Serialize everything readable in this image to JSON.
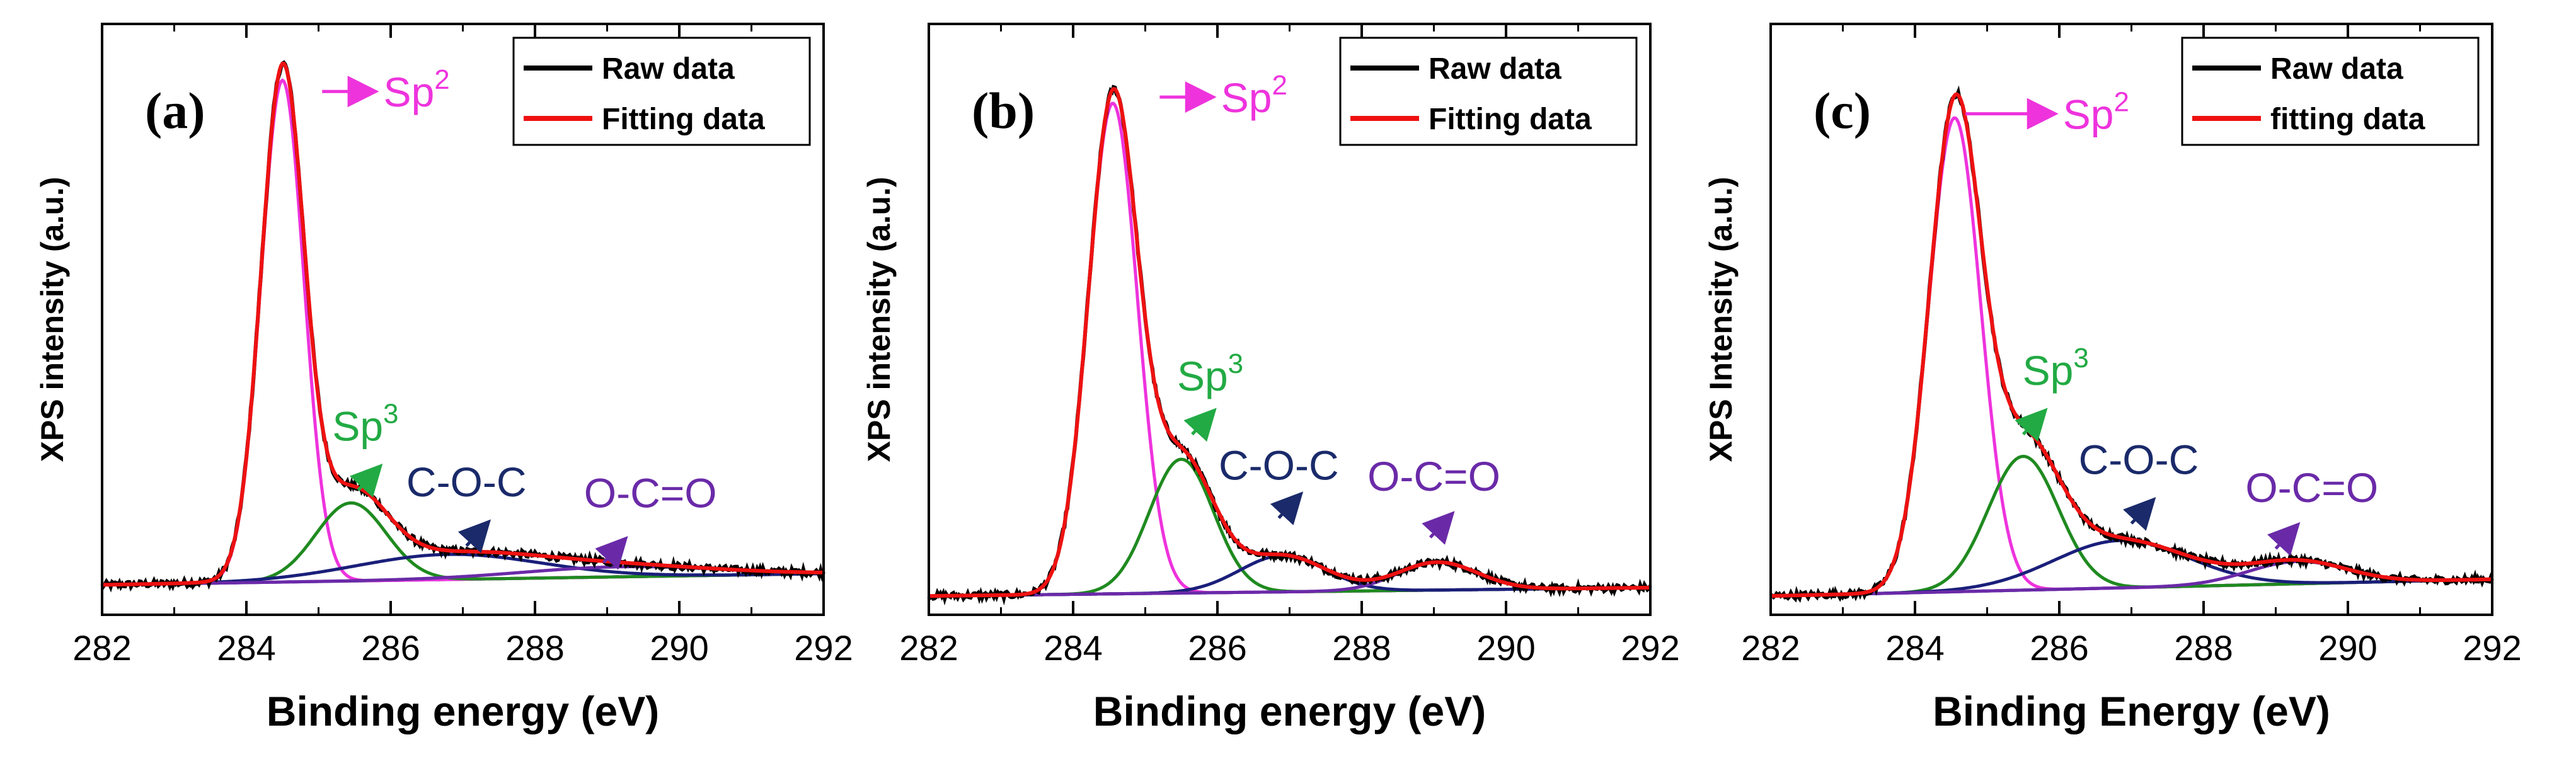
{
  "figure": {
    "colors": {
      "raw": "#000000",
      "fit": "#ee1111",
      "sp2": "#ee33dd",
      "sp3": "#1f8a1f",
      "coc": "#1a1f7a",
      "oco": "#6a2aa8",
      "sp2_label": "#ee33dd",
      "sp3_label": "#22aa44",
      "coc_label": "#1a2a6a",
      "oco_label": "#6a2aa8"
    }
  },
  "chart_data": [
    {
      "type": "line",
      "panel": "(a)",
      "title": "",
      "xlabel": "Binding energy (eV)",
      "ylabel": "XPS intensity (a.u.)",
      "xlim": [
        282,
        292
      ],
      "ylim": [
        0,
        1.0
      ],
      "xticks": [
        "282",
        "284",
        "286",
        "288",
        "290",
        "292"
      ],
      "legend": {
        "position": "top-right",
        "entries": [
          "Raw data",
          "Fitting data"
        ]
      },
      "background": 0.03,
      "background_end": 0.05,
      "components": [
        {
          "name": "Sp2",
          "label": "Sp",
          "sup": "2",
          "center": 284.5,
          "fwhm": 0.7,
          "height": 0.9
        },
        {
          "name": "Sp3",
          "label": "Sp",
          "sup": "3",
          "center": 285.45,
          "fwhm": 1.15,
          "height": 0.14
        },
        {
          "name": "C-O-C",
          "label": "C-O-C",
          "sup": "",
          "center": 286.8,
          "fwhm": 3.0,
          "height": 0.045
        },
        {
          "name": "O-C=O",
          "label": "O-C=O",
          "sup": "",
          "center": 289.2,
          "fwhm": 3.2,
          "height": 0.018
        }
      ],
      "annotations": [
        {
          "text": "Sp",
          "sup": "2",
          "component": "Sp2",
          "x": 285.05,
          "y": 0.915,
          "tx": 285.9,
          "ty": 0.915
        },
        {
          "text": "Sp",
          "sup": "3",
          "component": "Sp3",
          "x": 285.8,
          "y": 0.235,
          "tx": 285.65,
          "ty": 0.3
        },
        {
          "text": "C-O-C",
          "sup": "",
          "component": "C-O-C",
          "x": 287.3,
          "y": 0.135,
          "tx": 287.05,
          "ty": 0.2
        },
        {
          "text": "O-C=O",
          "sup": "",
          "component": "O-C=O",
          "x": 289.2,
          "y": 0.105,
          "tx": 289.6,
          "ty": 0.18
        }
      ]
    },
    {
      "type": "line",
      "panel": "(b)",
      "title": "",
      "xlabel": "Binding energy (eV)",
      "ylabel": "XPS intensity (a.u.)",
      "xlim": [
        282,
        292
      ],
      "ylim": [
        0,
        1.0
      ],
      "xticks": [
        "282",
        "284",
        "286",
        "288",
        "290",
        "292"
      ],
      "legend": {
        "position": "top-right",
        "entries": [
          "Raw data",
          "Fitting data"
        ]
      },
      "background": 0.01,
      "background_end": 0.025,
      "components": [
        {
          "name": "Sp2",
          "label": "Sp",
          "sup": "2",
          "center": 284.55,
          "fwhm": 0.8,
          "height": 0.88
        },
        {
          "name": "Sp3",
          "label": "Sp",
          "sup": "3",
          "center": 285.5,
          "fwhm": 1.05,
          "height": 0.24
        },
        {
          "name": "C-O-C",
          "label": "C-O-C",
          "sup": "",
          "center": 286.9,
          "fwhm": 1.4,
          "height": 0.065
        },
        {
          "name": "O-C=O",
          "label": "O-C=O",
          "sup": "",
          "center": 289.05,
          "fwhm": 1.3,
          "height": 0.05
        }
      ],
      "annotations": [
        {
          "text": "Sp",
          "sup": "2",
          "component": "Sp2",
          "x": 285.2,
          "y": 0.905,
          "tx": 286.05,
          "ty": 0.905
        },
        {
          "text": "Sp",
          "sup": "3",
          "component": "Sp3",
          "x": 285.9,
          "y": 0.335,
          "tx": 285.9,
          "ty": 0.39
        },
        {
          "text": "C-O-C",
          "sup": "",
          "component": "C-O-C",
          "x": 287.1,
          "y": 0.185,
          "tx": 286.85,
          "ty": 0.23
        },
        {
          "text": "O-C=O",
          "sup": "",
          "component": "O-C=O",
          "x": 289.2,
          "y": 0.15,
          "tx": 289.0,
          "ty": 0.21
        }
      ]
    },
    {
      "type": "line",
      "panel": "(c)",
      "title": "",
      "xlabel": "Binding Energy (eV)",
      "ylabel": "XPS Intensity (a.u.)",
      "xlim": [
        282,
        292
      ],
      "ylim": [
        0,
        1.0
      ],
      "xticks": [
        "282",
        "284",
        "286",
        "288",
        "290",
        "292"
      ],
      "legend": {
        "position": "top-right",
        "entries": [
          "Raw data",
          "fitting data"
        ]
      },
      "background": 0.01,
      "background_end": 0.04,
      "components": [
        {
          "name": "Sp2",
          "label": "Sp",
          "sup": "2",
          "center": 284.55,
          "fwhm": 0.85,
          "height": 0.85
        },
        {
          "name": "Sp3",
          "label": "Sp",
          "sup": "3",
          "center": 285.5,
          "fwhm": 1.15,
          "height": 0.24
        },
        {
          "name": "C-O-C",
          "label": "C-O-C",
          "sup": "",
          "center": 286.85,
          "fwhm": 2.2,
          "height": 0.085
        },
        {
          "name": "O-C=O",
          "label": "O-C=O",
          "sup": "",
          "center": 289.3,
          "fwhm": 1.6,
          "height": 0.04
        }
      ],
      "annotations": [
        {
          "text": "Sp",
          "sup": "2",
          "component": "Sp2",
          "x": 284.7,
          "y": 0.875,
          "tx": 286.05,
          "ty": 0.875
        },
        {
          "text": "Sp",
          "sup": "3",
          "component": "Sp3",
          "x": 285.75,
          "y": 0.335,
          "tx": 285.95,
          "ty": 0.4
        },
        {
          "text": "C-O-C",
          "sup": "",
          "component": "C-O-C",
          "x": 287.25,
          "y": 0.175,
          "tx": 287.1,
          "ty": 0.24
        },
        {
          "text": "O-C=O",
          "sup": "",
          "component": "O-C=O",
          "x": 289.25,
          "y": 0.13,
          "tx": 289.5,
          "ty": 0.19
        }
      ]
    }
  ]
}
